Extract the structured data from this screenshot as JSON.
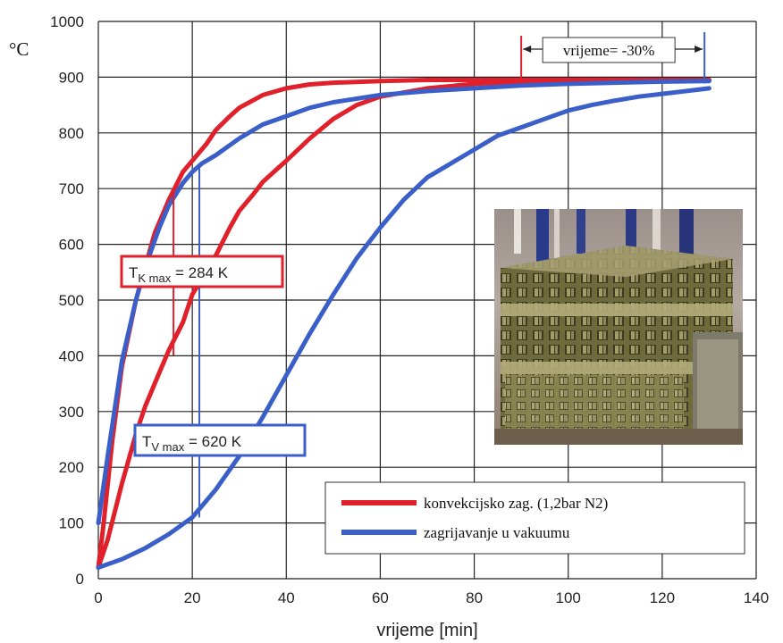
{
  "chart_data": {
    "type": "line",
    "title": "",
    "xlabel": "vrijeme [min]",
    "ylabel": "°C",
    "xlim": [
      0,
      140
    ],
    "ylim": [
      0,
      1000
    ],
    "xticks": [
      0,
      20,
      40,
      60,
      80,
      100,
      120,
      140
    ],
    "yticks": [
      0,
      100,
      200,
      300,
      400,
      500,
      600,
      700,
      800,
      900,
      1000
    ],
    "grid": true,
    "legend_position": "bottom-right",
    "series": [
      {
        "name": "konvekcijsko zag. (1,2bar N2)",
        "color": "#e0202a",
        "role": "surface",
        "x": [
          0,
          1,
          3,
          5,
          8,
          10,
          12,
          15,
          18,
          20,
          23,
          25,
          28,
          30,
          35,
          40,
          45,
          50,
          60,
          70,
          80,
          90,
          100,
          110,
          120,
          130
        ],
        "y": [
          20,
          90,
          250,
          380,
          500,
          560,
          620,
          680,
          730,
          750,
          780,
          805,
          830,
          845,
          868,
          880,
          887,
          890,
          893,
          895,
          895,
          895,
          895,
          895,
          895,
          895
        ]
      },
      {
        "name": "konvekcijsko zag. (1,2bar N2)",
        "color": "#e0202a",
        "role": "core",
        "x": [
          0,
          2,
          5,
          8,
          10,
          13,
          15,
          18,
          20,
          25,
          28,
          30,
          33,
          35,
          38,
          40,
          45,
          50,
          55,
          60,
          70,
          80,
          90,
          100,
          110,
          120,
          130
        ],
        "y": [
          20,
          70,
          170,
          260,
          310,
          370,
          410,
          460,
          510,
          580,
          630,
          660,
          690,
          712,
          735,
          750,
          790,
          825,
          850,
          865,
          880,
          888,
          892,
          895,
          895,
          895,
          895
        ]
      },
      {
        "name": "zagrijavanje u vakuumu",
        "color": "#3b5fc8",
        "role": "surface",
        "x": [
          0,
          2,
          5,
          8,
          10,
          13,
          15,
          18,
          20,
          22,
          25,
          30,
          35,
          40,
          45,
          50,
          60,
          70,
          80,
          90,
          100,
          110,
          120,
          130
        ],
        "y": [
          100,
          220,
          390,
          500,
          560,
          630,
          670,
          710,
          730,
          745,
          760,
          790,
          815,
          830,
          845,
          855,
          868,
          875,
          880,
          885,
          888,
          890,
          892,
          893
        ]
      },
      {
        "name": "zagrijavanje u vakuumu",
        "color": "#3b5fc8",
        "role": "core",
        "x": [
          0,
          5,
          10,
          15,
          20,
          25,
          30,
          35,
          40,
          45,
          50,
          55,
          60,
          65,
          70,
          75,
          80,
          85,
          90,
          95,
          100,
          105,
          110,
          115,
          120,
          125,
          130
        ],
        "y": [
          20,
          35,
          55,
          80,
          110,
          160,
          220,
          290,
          365,
          440,
          510,
          575,
          630,
          680,
          720,
          745,
          770,
          795,
          810,
          825,
          840,
          850,
          858,
          865,
          870,
          875,
          880
        ]
      }
    ],
    "annotations": [
      {
        "kind": "vline",
        "name": "t-k-max-marker",
        "color": "#e0202a",
        "x": 16,
        "y": [
          400,
          700
        ]
      },
      {
        "kind": "vline",
        "name": "t-v-max-marker",
        "color": "#3b5fc8",
        "x": 21.5,
        "y": [
          110,
          740
        ]
      },
      {
        "kind": "box",
        "name": "t-k-max-box",
        "color": "#e0202a",
        "main": "T",
        "sub": "K max",
        "rest": " = 284 K"
      },
      {
        "kind": "box",
        "name": "t-v-max-box",
        "color": "#3b5fc8",
        "main": "T",
        "sub": "V max",
        "rest": " = 620 K"
      },
      {
        "kind": "span",
        "name": "time-saving-span",
        "from_x": 90,
        "to_x": 129,
        "y": 895,
        "label": "vrijeme= -30%"
      }
    ],
    "inset_photo": "charging basket with parts"
  }
}
